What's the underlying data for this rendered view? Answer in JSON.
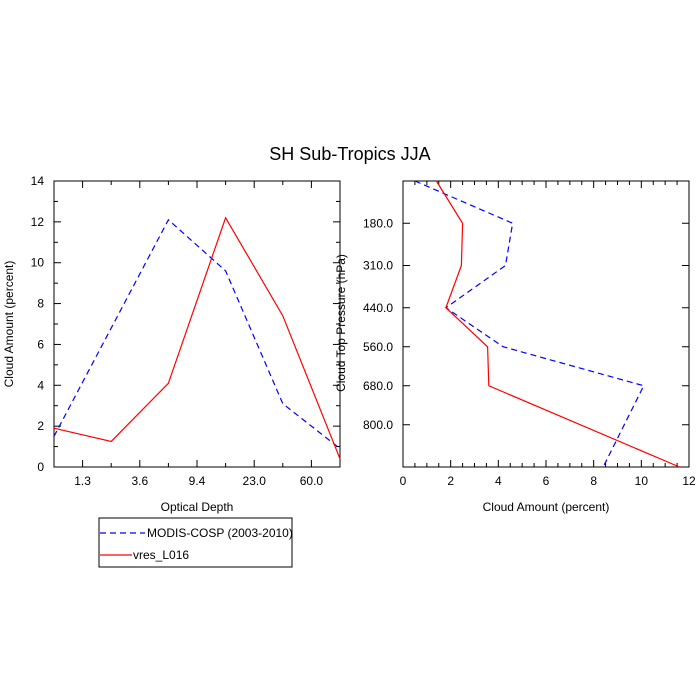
{
  "title": "SH Sub-Tropics JJA",
  "colors": {
    "modis": "#0000ff",
    "model": "#ff0000"
  },
  "legend": {
    "entries": [
      {
        "label": "MODIS-COSP (2003-2010)",
        "color": "#0000ff",
        "dash": "dashed"
      },
      {
        "label": "vres_L016",
        "color": "#ff0000",
        "dash": "solid"
      }
    ]
  },
  "chart_data": [
    {
      "type": "line",
      "xlabel": "Optical Depth",
      "ylabel": "Cloud Amount (percent)",
      "xlim": [
        0,
        5
      ],
      "ylim": [
        0,
        14
      ],
      "xtick_labels": [
        "1.3",
        "3.6",
        "9.4",
        "23.0",
        "60.0"
      ],
      "xtick_values": [
        0.5,
        1.5,
        2.5,
        3.5,
        4.5
      ],
      "yticks": [
        0,
        2,
        4,
        6,
        8,
        10,
        12,
        14
      ],
      "series": [
        {
          "name": "MODIS-COSP (2003-2010)",
          "color": "#0000ff",
          "dash": "dashed",
          "x": [
            0,
            2,
            3,
            4,
            5
          ],
          "y": [
            1.5,
            12.1,
            9.6,
            3.1,
            0.9
          ]
        },
        {
          "name": "vres_L016",
          "color": "#ff0000",
          "dash": "solid",
          "x": [
            0,
            1,
            2,
            3,
            4,
            5
          ],
          "y": [
            1.9,
            1.25,
            4.1,
            12.2,
            7.4,
            0.4
          ]
        }
      ]
    },
    {
      "type": "line",
      "xlabel": "Cloud Amount (percent)",
      "ylabel": "Cloud Top Pressure (hPa)",
      "xlim": [
        0,
        12
      ],
      "ylim": [
        50,
        930
      ],
      "xticks": [
        0,
        2,
        4,
        6,
        8,
        10,
        12
      ],
      "ytick_labels": [
        "180.0",
        "310.0",
        "440.0",
        "560.0",
        "680.0",
        "800.0"
      ],
      "ytick_values": [
        180,
        310,
        440,
        560,
        680,
        800
      ],
      "series": [
        {
          "name": "MODIS-COSP (2003-2010)",
          "color": "#0000ff",
          "dash": "dashed",
          "x": [
            0.5,
            4.6,
            4.3,
            1.8,
            4.2,
            10.1,
            8.4
          ],
          "y": [
            50,
            180,
            310,
            440,
            560,
            680,
            930
          ]
        },
        {
          "name": "vres_L016",
          "color": "#ff0000",
          "dash": "solid",
          "x": [
            1.4,
            2.5,
            2.45,
            1.8,
            3.55,
            3.6,
            11.6
          ],
          "y": [
            50,
            180,
            310,
            440,
            560,
            680,
            930
          ]
        }
      ]
    }
  ]
}
